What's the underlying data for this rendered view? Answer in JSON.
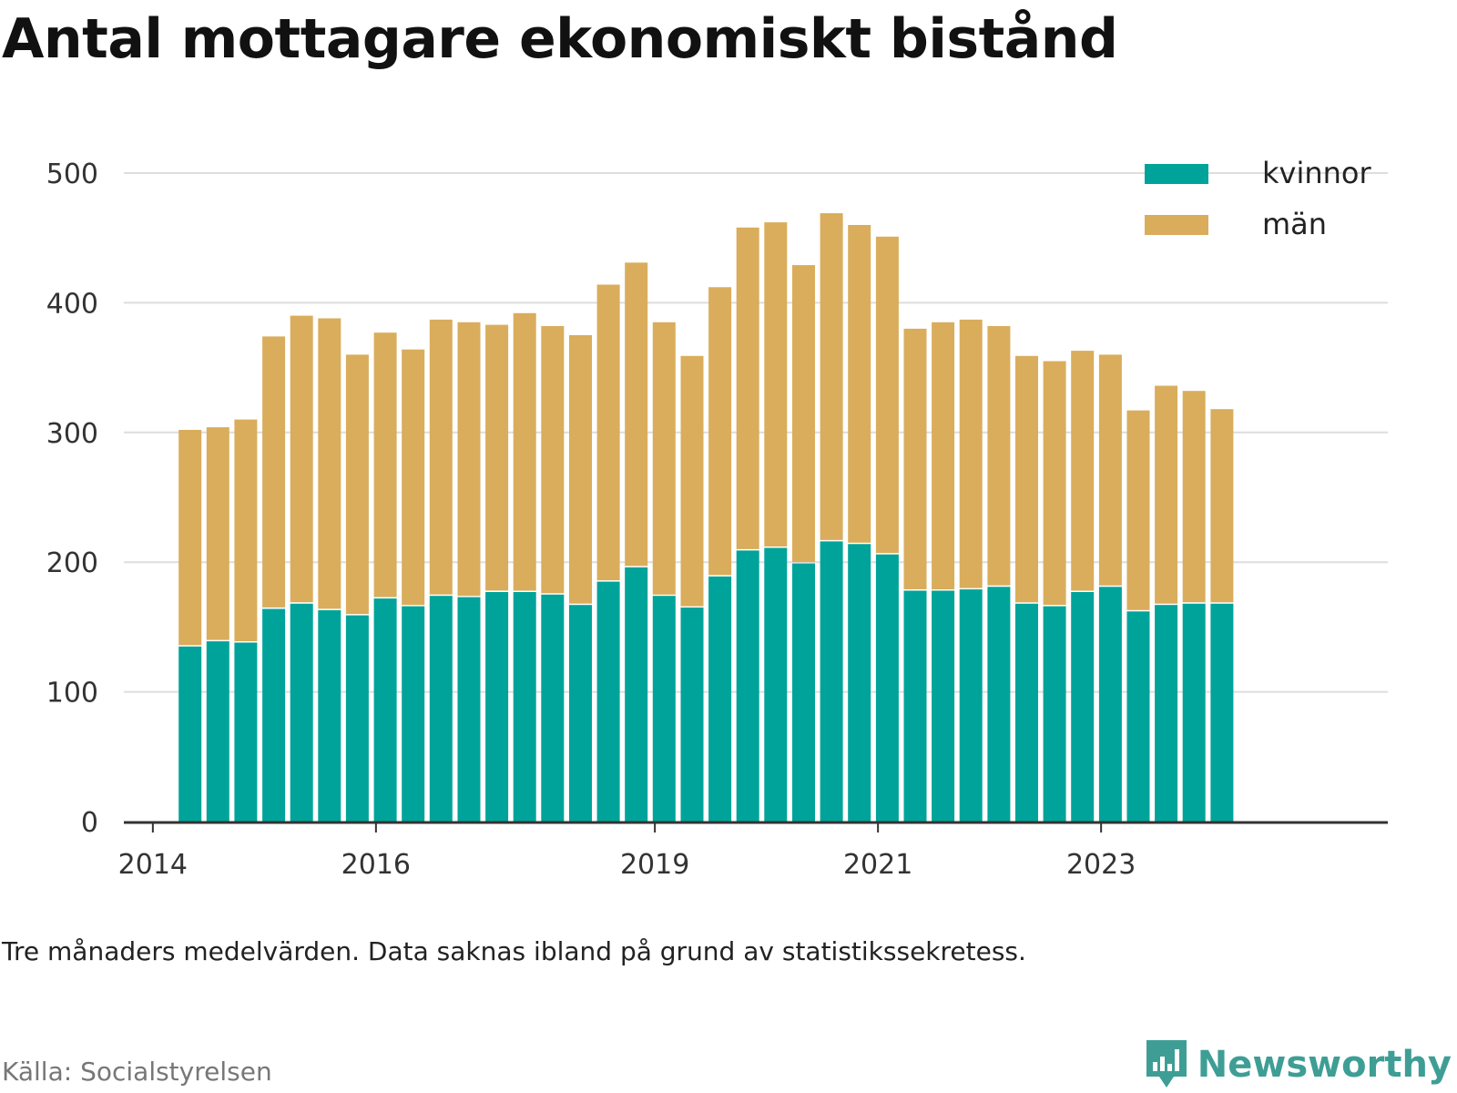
{
  "title": "Antal mottagare ekonomiskt bistånd",
  "note": "Tre månaders medelvärden. Data saknas ibland på grund av statistikssekretess.",
  "source": "Källa: Socialstyrelsen",
  "brand": "Newsworthy",
  "colors": {
    "kvinnor": "#00a39a",
    "man": "#d9ad5c",
    "grid": "#dddddd",
    "axis": "#333333",
    "brand": "#3e9e95"
  },
  "chart_data": {
    "type": "bar",
    "stacked": true,
    "ylim": [
      0,
      500
    ],
    "yticks": [
      0,
      100,
      200,
      300,
      400,
      500
    ],
    "xticks": [
      "2014",
      "2016",
      "2019",
      "2021",
      "2023"
    ],
    "grid": true,
    "legend_position": "top-right",
    "categories": [
      "2014-05",
      "2014-08",
      "2014-11",
      "2015-02",
      "2015-05",
      "2015-08",
      "2015-11",
      "2016-02",
      "2016-05",
      "2016-08",
      "2016-11",
      "2017-02",
      "2017-05",
      "2017-08",
      "2017-11",
      "2018-02",
      "2018-05",
      "2018-08",
      "2018-11",
      "2019-02",
      "2019-05",
      "2019-08",
      "2019-11",
      "2020-02",
      "2020-05",
      "2020-08",
      "2020-11",
      "2021-02",
      "2021-05",
      "2021-08",
      "2021-11",
      "2022-02",
      "2022-05",
      "2022-08",
      "2022-11",
      "2023-02",
      "2023-05",
      "2023-08"
    ],
    "series": [
      {
        "name": "kvinnor",
        "values": [
          135,
          139,
          138,
          164,
          168,
          163,
          159,
          172,
          166,
          174,
          173,
          177,
          177,
          175,
          167,
          185,
          196,
          174,
          165,
          189,
          209,
          211,
          199,
          216,
          214,
          206,
          178,
          178,
          179,
          181,
          168,
          166,
          177,
          181,
          162,
          167,
          168,
          168
        ]
      },
      {
        "name": "män",
        "values": [
          167,
          165,
          172,
          210,
          222,
          225,
          201,
          205,
          198,
          213,
          212,
          206,
          215,
          207,
          208,
          229,
          235,
          211,
          194,
          223,
          249,
          251,
          230,
          253,
          246,
          245,
          202,
          207,
          208,
          201,
          191,
          189,
          186,
          179,
          155,
          169,
          164,
          150
        ]
      }
    ]
  }
}
